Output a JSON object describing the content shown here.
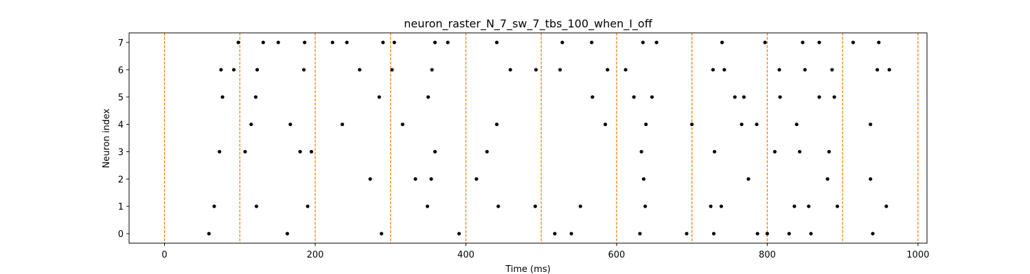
{
  "chart_data": {
    "type": "scatter",
    "title": "neuron_raster_N_7_sw_7_tbs_100_when_I_off",
    "xlabel": "Time (ms)",
    "ylabel": "Neuron index",
    "xlim": [
      -47,
      1012
    ],
    "ylim": [
      -0.35,
      7.35
    ],
    "xticks": [
      0,
      200,
      400,
      600,
      800,
      1000
    ],
    "yticks": [
      0,
      1,
      2,
      3,
      4,
      5,
      6,
      7
    ],
    "grid": false,
    "colors": {
      "spike": "#000000",
      "vline": "#ff7f0e",
      "axes": "#000000"
    },
    "vlines": {
      "x": [
        0,
        100,
        200,
        300,
        400,
        500,
        600,
        700,
        800,
        900,
        1000
      ],
      "style": "dashed"
    },
    "series": [
      {
        "neuron": 0,
        "spike_times": [
          59,
          163,
          288,
          391,
          518,
          540,
          631,
          693,
          729,
          787,
          800,
          829,
          858,
          940
        ]
      },
      {
        "neuron": 1,
        "spike_times": [
          66,
          122,
          190,
          349,
          443,
          492,
          552,
          638,
          725,
          739,
          836,
          855,
          893,
          958
        ]
      },
      {
        "neuron": 2,
        "spike_times": [
          273,
          333,
          354,
          414,
          636,
          775,
          880,
          937
        ]
      },
      {
        "neuron": 3,
        "spike_times": [
          73,
          107,
          180,
          195,
          359,
          428,
          633,
          730,
          810,
          843,
          882
        ]
      },
      {
        "neuron": 4,
        "spike_times": [
          115,
          167,
          236,
          316,
          441,
          585,
          639,
          700,
          766,
          786,
          839,
          937
        ]
      },
      {
        "neuron": 5,
        "spike_times": [
          77,
          121,
          285,
          350,
          568,
          623,
          647,
          757,
          769,
          817,
          869,
          889
        ]
      },
      {
        "neuron": 6,
        "spike_times": [
          75,
          92,
          123,
          185,
          259,
          302,
          355,
          459,
          493,
          525,
          588,
          612,
          728,
          743,
          816,
          850,
          886,
          946,
          962
        ]
      },
      {
        "neuron": 7,
        "spike_times": [
          98,
          131,
          151,
          186,
          223,
          242,
          290,
          305,
          359,
          376,
          441,
          528,
          567,
          635,
          653,
          740,
          797,
          847,
          869,
          914,
          948
        ]
      }
    ]
  }
}
